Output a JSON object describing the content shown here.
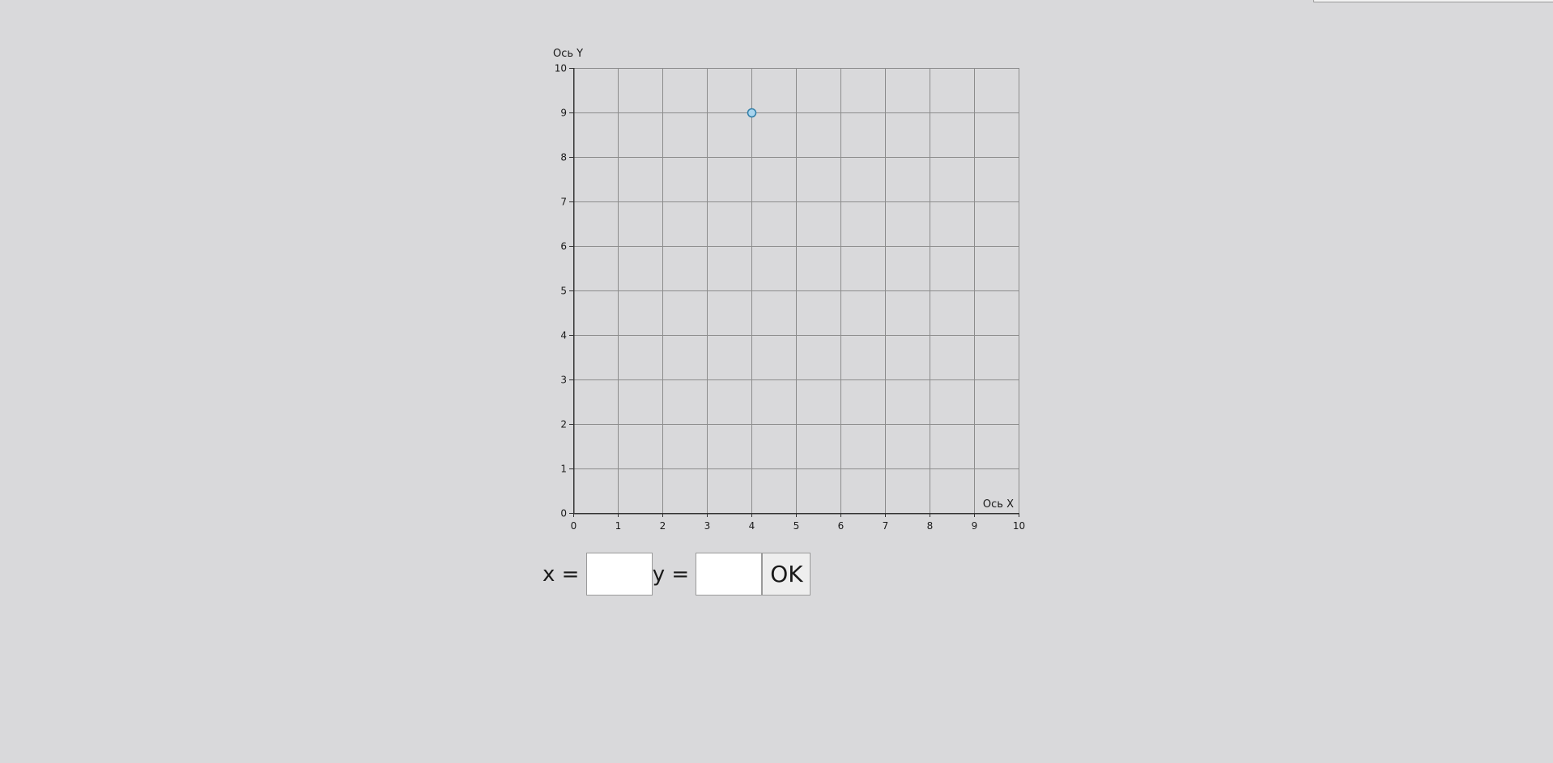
{
  "chart_data": {
    "type": "scatter",
    "xlabel": "Ось X",
    "ylabel": "Ось Y",
    "xlim": [
      0,
      10
    ],
    "ylim": [
      0,
      10
    ],
    "x_ticks": [
      "0",
      "1",
      "2",
      "3",
      "4",
      "5",
      "6",
      "7",
      "8",
      "9",
      "10"
    ],
    "y_ticks": [
      "0",
      "1",
      "2",
      "3",
      "4",
      "5",
      "6",
      "7",
      "8",
      "9",
      "10"
    ],
    "grid": true,
    "points": [
      {
        "x": 4,
        "y": 9
      }
    ],
    "point_color": "#a8d4ee",
    "point_stroke": "#2f7ea8"
  },
  "controls": {
    "x_label": "x = ",
    "y_label": "y = ",
    "x_value": "",
    "y_value": "",
    "ok_label": "OK"
  }
}
